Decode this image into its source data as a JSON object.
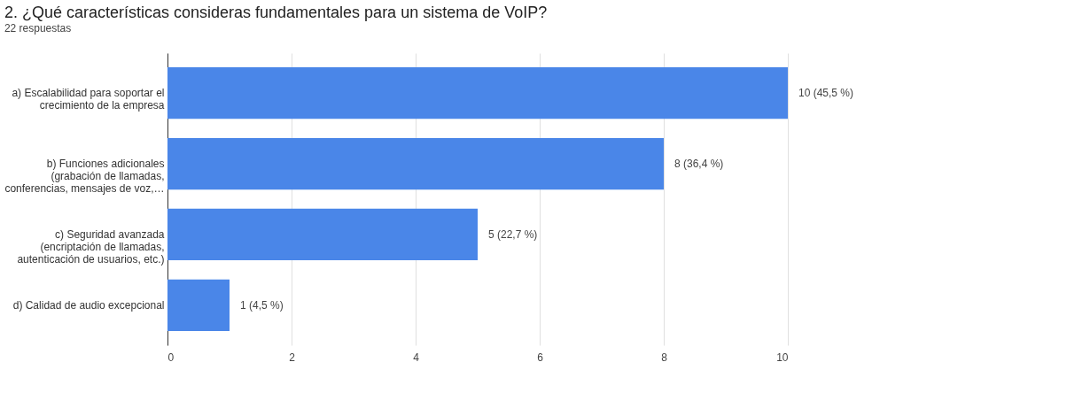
{
  "chart_data": {
    "type": "bar",
    "orientation": "horizontal",
    "title": "2. ¿Qué características consideras fundamentales para un sistema de VoIP?",
    "subtitle": "22 respuestas",
    "categories": [
      "a) Escalabilidad para soportar el crecimiento de la empresa",
      "b) Funciones adicionales (grabación de llamadas, conferencias, mensajes de voz,…",
      "c) Seguridad avanzada (encriptación de llamadas, autenticación de usuarios, etc.)",
      "d) Calidad de audio excepcional"
    ],
    "values": [
      10,
      8,
      5,
      1
    ],
    "value_labels": [
      "10 (45,5 %)",
      "8 (36,4 %)",
      "5 (22,7 %)",
      "1 (4,5 %)"
    ],
    "color": "#4a86e8",
    "xlim": [
      0,
      10
    ],
    "xticks": [
      0,
      2,
      4,
      6,
      8,
      10
    ],
    "grid": "x"
  }
}
